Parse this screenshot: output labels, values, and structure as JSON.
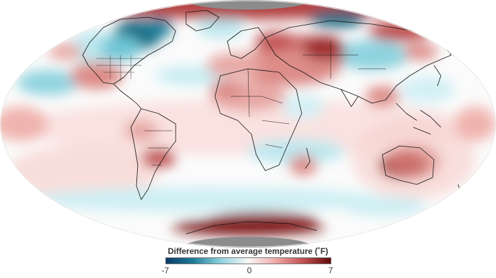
{
  "legend": {
    "title": "Difference from average temperature (˚F)",
    "ticks": [
      "-7",
      "0",
      "7"
    ],
    "range": [
      -7,
      7
    ],
    "colors": [
      "#0b3a66",
      "#1f7d98",
      "#8fd3df",
      "#f7f7f7",
      "#f0a8a8",
      "#c05050",
      "#5e0a0a"
    ]
  },
  "map": {
    "projection": "Mollweide",
    "colors": {
      "cold_strong": "#1d6e86",
      "cold": "#6fc6d6",
      "cold_light": "#bde8ef",
      "neutral": "#fbfbfb",
      "warm_light": "#f6c9c5",
      "warm": "#dd8c88",
      "warm_strong": "#9e2e2e",
      "no_data": "#8c8c8c",
      "coastline": "#111111"
    }
  }
}
